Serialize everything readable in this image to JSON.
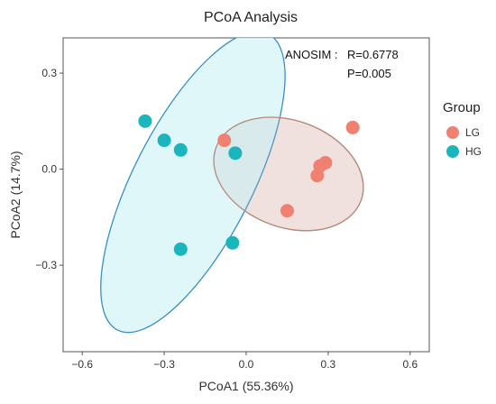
{
  "chart_data": {
    "type": "scatter",
    "title": "PCoA Analysis",
    "xlabel": "PCoA1 (55.36%)",
    "ylabel": "PCoA2 (14.7%)",
    "xlim": [
      -0.67,
      0.67
    ],
    "ylim": [
      -0.57,
      0.41
    ],
    "x_ticks": [
      -0.6,
      -0.3,
      0.0,
      0.3,
      0.6
    ],
    "x_tick_labels": [
      "−0.6",
      "−0.3",
      "0.0",
      "0.3",
      "0.6"
    ],
    "y_ticks": [
      -0.3,
      0.0,
      0.3
    ],
    "y_tick_labels": [
      "−0.3",
      "0.0",
      "0.3"
    ],
    "grid": false,
    "legend": {
      "title": "Group",
      "placement": "right",
      "entries": [
        "LG",
        "HG"
      ]
    },
    "annotation": {
      "label": "ANOSIM :",
      "line1": "R=0.6778",
      "line2": "P=0.005"
    },
    "series": [
      {
        "name": "LG",
        "color": "#F08070",
        "fill": "#FCE5E3",
        "stroke": "#B88A7A",
        "x": [
          -0.08,
          0.15,
          0.26,
          0.27,
          0.29,
          0.39
        ],
        "y": [
          0.09,
          -0.13,
          -0.02,
          0.01,
          0.02,
          0.13
        ],
        "ellipse": {
          "cx": 0.155,
          "cy": -0.015,
          "rx": 0.26,
          "ry": 0.18,
          "angle_deg": 20
        }
      },
      {
        "name": "HG",
        "color": "#1BB5BD",
        "fill": "#D9F6F8",
        "stroke": "#3A8FC5",
        "x": [
          -0.37,
          -0.3,
          -0.24,
          -0.04,
          -0.24,
          -0.05
        ],
        "y": [
          0.15,
          0.09,
          0.06,
          0.05,
          -0.25,
          -0.23
        ],
        "ellipse": {
          "cx": -0.195,
          "cy": -0.04,
          "rx": 0.56,
          "ry": 0.2,
          "angle_deg": -63
        }
      }
    ]
  }
}
